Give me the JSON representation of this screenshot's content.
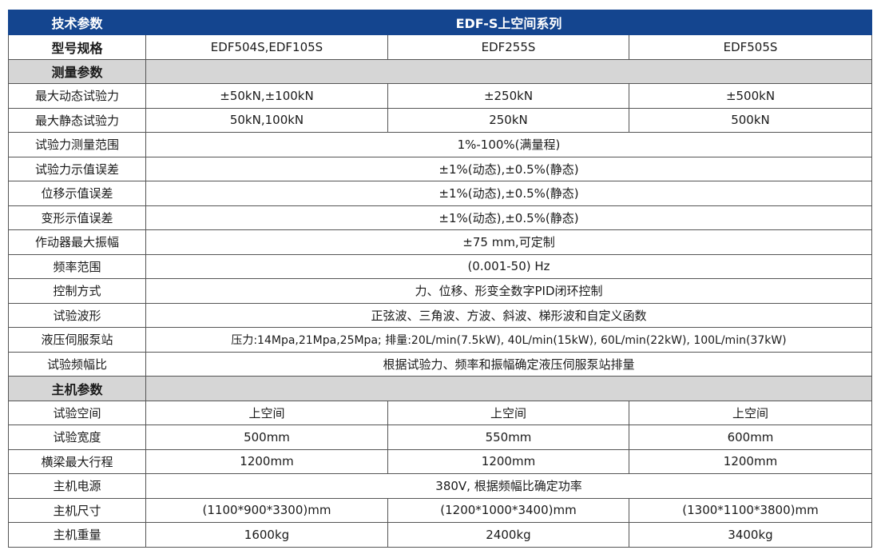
{
  "header": {
    "label": "技术参数",
    "series": "EDF-S上空间系列"
  },
  "model_row": {
    "label": "型号规格",
    "models": [
      "EDF504S,EDF105S",
      "EDF255S",
      "EDF505S"
    ]
  },
  "section_measure": {
    "title": "测量参数"
  },
  "rows_measure": [
    {
      "label": "最大动态试验力",
      "values": [
        "±50kN,±100kN",
        "±250kN",
        "±500kN"
      ]
    },
    {
      "label": "最大静态试验力",
      "values": [
        "50kN,100kN",
        "250kN",
        "500kN"
      ]
    },
    {
      "label": "试验力测量范围",
      "value": "1%-100%(满量程)"
    },
    {
      "label": "试验力示值误差",
      "value": "±1%(动态),±0.5%(静态)"
    },
    {
      "label": "位移示值误差",
      "value": "±1%(动态),±0.5%(静态)"
    },
    {
      "label": "变形示值误差",
      "value": "±1%(动态),±0.5%(静态)"
    },
    {
      "label": "作动器最大振幅",
      "value": "±75 mm,可定制"
    },
    {
      "label": "频率范围",
      "value": "(0.001-50) Hz"
    },
    {
      "label": "控制方式",
      "value": "力、位移、形变全数字PID闭环控制"
    },
    {
      "label": "试验波形",
      "value": "正弦波、三角波、方波、斜波、梯形波和自定义函数"
    },
    {
      "label": "液压伺服泵站",
      "value": "压力:14Mpa,21Mpa,25Mpa;   排量:20L/min(7.5kW), 40L/min(15kW), 60L/min(22kW), 100L/min(37kW)"
    },
    {
      "label": "试验频幅比",
      "value": "根据试验力、频率和振幅确定液压伺服泵站排量"
    }
  ],
  "section_host": {
    "title": "主机参数"
  },
  "rows_host": [
    {
      "label": "试验空间",
      "values": [
        "上空间",
        "上空间",
        "上空间"
      ]
    },
    {
      "label": "试验宽度",
      "values": [
        "500mm",
        "550mm",
        "600mm"
      ]
    },
    {
      "label": "横梁最大行程",
      "values": [
        "1200mm",
        "1200mm",
        "1200mm"
      ]
    },
    {
      "label": "主机电源",
      "value": "380V, 根据频幅比确定功率"
    },
    {
      "label": "主机尺寸",
      "values": [
        "(1100*900*3300)mm",
        "(1200*1000*3400)mm",
        "(1300*1100*3800)mm"
      ]
    },
    {
      "label": "主机重量",
      "values": [
        "1600kg",
        "2400kg",
        "3400kg"
      ]
    }
  ],
  "colors": {
    "header_bg": "#14458f",
    "section_bg": "#d6d6d6",
    "border": "#555555"
  }
}
